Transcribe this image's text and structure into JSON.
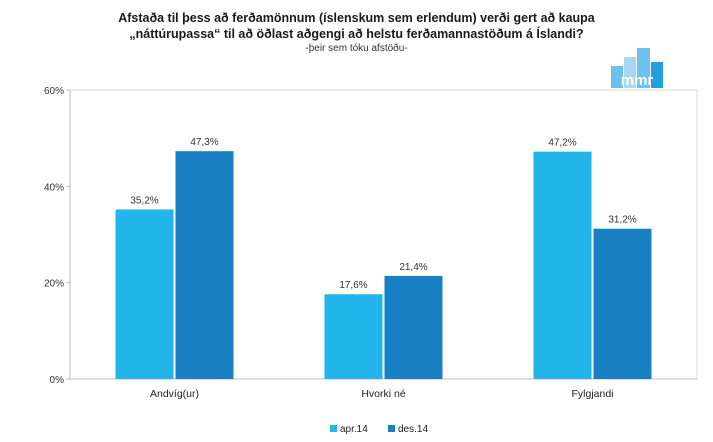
{
  "chart_data": {
    "type": "bar",
    "title_line1": "Afstaða til þess að ferðamönnum (íslenskum sem erlendum) verði gert að kaupa",
    "title_line2": "„náttúrupassa“ til að öðlast aðgengi að helstu ferðamannastöðum á Íslandi?",
    "subtitle": "-þeir sem tóku afstöðu-",
    "categories": [
      "Andvíg(ur)",
      "Hvorki né",
      "Fylgjandi"
    ],
    "series": [
      {
        "name": "apr.14",
        "values": [
          35.2,
          17.6,
          47.2
        ],
        "labels": [
          "35,2%",
          "17,6%",
          "47,2%"
        ],
        "color": "#21b5ea"
      },
      {
        "name": "des.14",
        "values": [
          47.3,
          21.4,
          31.2
        ],
        "labels": [
          "47,3%",
          "21,4%",
          "31,2%"
        ],
        "color": "#1a80c4"
      }
    ],
    "ylim": [
      0,
      60
    ],
    "yticks": [
      0,
      20,
      40,
      60
    ],
    "ytick_labels": [
      "0%",
      "20%",
      "40%",
      "60%"
    ],
    "grid": false,
    "legend_position": "bottom-center"
  },
  "logo": {
    "text": "mmr",
    "colors": [
      "#a8d8f0",
      "#6cc2ee",
      "#21a0e0"
    ]
  }
}
